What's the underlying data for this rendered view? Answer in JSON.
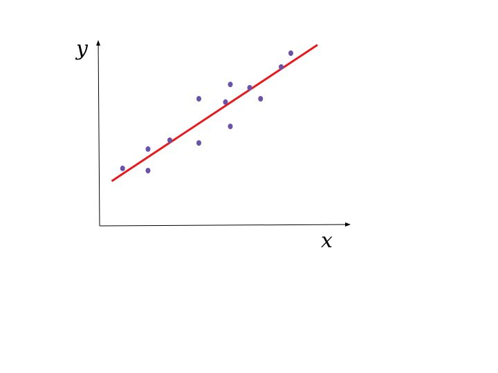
{
  "chart_data": {
    "type": "scatter",
    "xlabel": "x",
    "ylabel": "y",
    "xlim": [
      0,
      10
    ],
    "ylim": [
      0,
      7
    ],
    "grid": false,
    "legend": "none",
    "x_ticks_shown": false,
    "y_ticks_shown": false,
    "points": [
      {
        "x": 0.95,
        "y": 2.08
      },
      {
        "x": 2.0,
        "y": 2.0
      },
      {
        "x": 2.0,
        "y": 2.78
      },
      {
        "x": 2.9,
        "y": 3.1
      },
      {
        "x": 4.1,
        "y": 3.0
      },
      {
        "x": 4.1,
        "y": 4.6
      },
      {
        "x": 5.2,
        "y": 4.48
      },
      {
        "x": 5.4,
        "y": 5.12
      },
      {
        "x": 5.4,
        "y": 3.6
      },
      {
        "x": 6.2,
        "y": 5.0
      },
      {
        "x": 6.65,
        "y": 4.6
      },
      {
        "x": 7.5,
        "y": 5.75
      },
      {
        "x": 7.9,
        "y": 6.25
      }
    ],
    "fit_line": {
      "x": [
        0.5,
        9.0
      ],
      "y": [
        1.62,
        6.55
      ]
    },
    "colors": {
      "points": "#6a52a8",
      "fit_line": "#e8191c",
      "axes": "#000000"
    }
  }
}
